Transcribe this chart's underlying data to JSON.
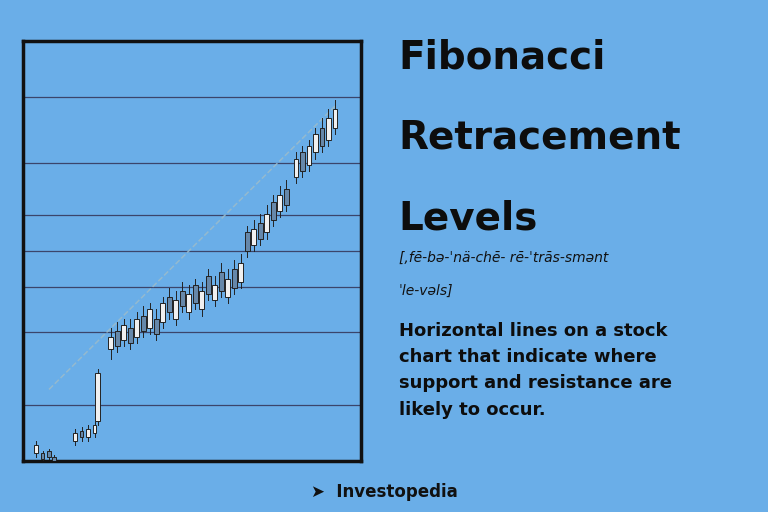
{
  "bg_color": "#6aaee8",
  "chart_bg": "#6aaee8",
  "chart_border_color": "#111111",
  "title_line1": "Fibonacci",
  "title_line2": "Retracement",
  "title_line3": "Levels",
  "phonetic": "[,fē-bə-ˈnä-chē- rē-ˈtrās-smənt",
  "phonetic2": "ˈle-vəls]",
  "definition": "Horizontal lines on a stock\nchart that indicate where\nsupport and resistance are\nlikely to occur.",
  "brand": "Investopedia",
  "fib_levels": [
    0.0,
    0.236,
    0.382,
    0.5,
    0.618,
    0.786,
    1.0
  ],
  "candle_color_bullish": "#f0f0f0",
  "candle_color_bearish": "#6688aa",
  "candle_edge": "#222222",
  "trend_color": "#99bbcc",
  "hline_color": "#333355"
}
